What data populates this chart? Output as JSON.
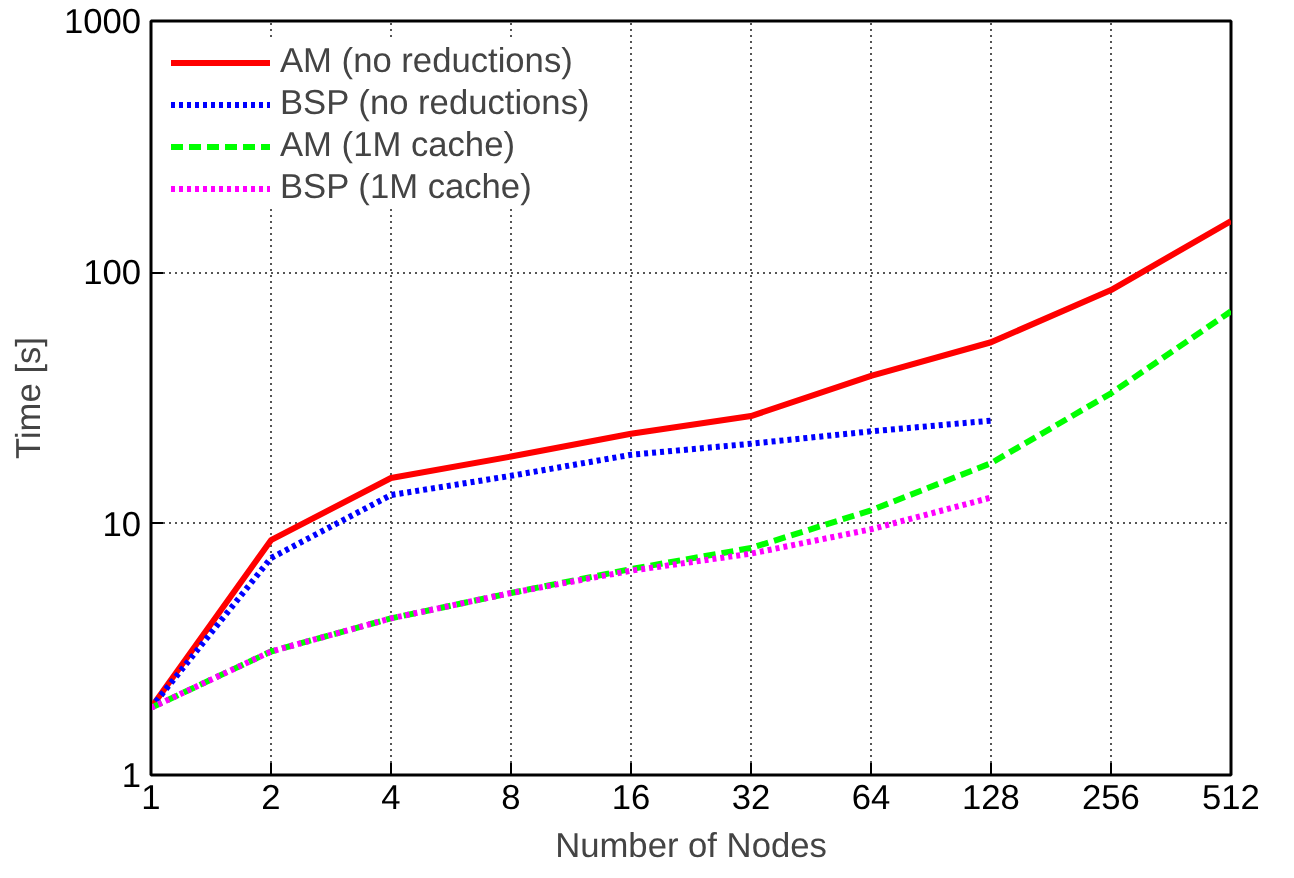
{
  "chart_data": {
    "type": "line",
    "xlabel": "Number of Nodes",
    "ylabel": "Time [s]",
    "x": [
      1,
      2,
      4,
      8,
      16,
      32,
      64,
      128,
      256,
      512
    ],
    "series": [
      {
        "name": "AM (no reductions)",
        "color": "#ff0000",
        "line_style": "solid",
        "values": [
          1.85,
          8.6,
          15.2,
          18.5,
          22.8,
          26.8,
          38.7,
          52.7,
          85,
          160
        ]
      },
      {
        "name": "BSP (no reductions)",
        "color": "#0000ff",
        "line_style": "dotted",
        "values": [
          1.85,
          7.3,
          13,
          15.5,
          18.8,
          20.8,
          23.3,
          25.7,
          null,
          null
        ]
      },
      {
        "name": "AM (1M cache)",
        "color": "#00ff00",
        "line_style": "dashed",
        "values": [
          1.85,
          3.1,
          4.2,
          5.3,
          6.6,
          8.0,
          11.3,
          17.4,
          33,
          70
        ]
      },
      {
        "name": "BSP (1M cache)",
        "color": "#ff00ff",
        "line_style": "dotted",
        "values": [
          1.85,
          3.1,
          4.2,
          5.3,
          6.5,
          7.6,
          9.5,
          12.7,
          null,
          null
        ]
      }
    ],
    "log": "xy",
    "xlim": [
      1,
      512
    ],
    "ylim": [
      1,
      1000
    ],
    "xticks": [
      1,
      2,
      4,
      8,
      16,
      32,
      64,
      128,
      256,
      512
    ],
    "yticks": [
      1,
      10,
      100,
      1000
    ],
    "grid": true,
    "legend": "top left",
    "marker": "none"
  }
}
